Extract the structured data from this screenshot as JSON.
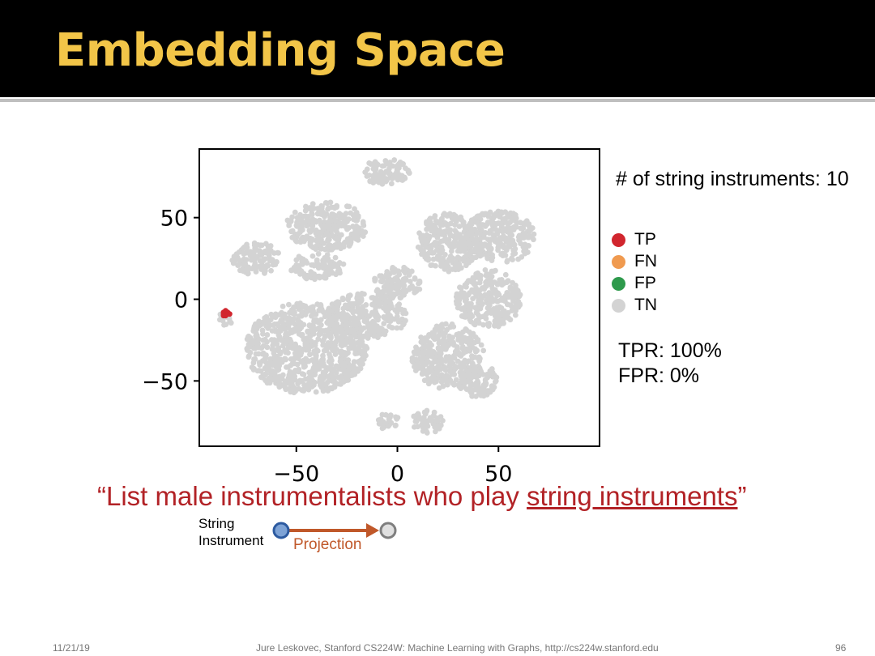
{
  "slide": {
    "title": "Embedding Space",
    "count_label": "# of string instruments: 10",
    "metrics": {
      "tpr": "TPR: 100%",
      "fpr": "FPR: 0%"
    },
    "query": {
      "open_quote": "“",
      "prefix": "List male instrumentalists who play ",
      "underlined": "string instruments",
      "close_quote": "”"
    },
    "projection_diagram": {
      "node_label_line1": "String",
      "node_label_line2": "Instrument",
      "edge_label": "Projection"
    },
    "footer": {
      "date": "11/21/19",
      "credit": "Jure Leskovec, Stanford CS224W: Machine Learning with Graphs, http://cs224w.stanford.edu",
      "page": "96"
    }
  },
  "colors": {
    "title": "#f2c548",
    "tp": "#d1262e",
    "fn": "#f09a4f",
    "fp": "#2e9a4c",
    "tn": "#d3d3d3",
    "query": "#b22226",
    "projection_arrow": "#c0582a"
  },
  "chart_data": {
    "type": "scatter",
    "xlim": [
      -98,
      100
    ],
    "ylim": [
      -90,
      92
    ],
    "xticks": [
      -50,
      0,
      50
    ],
    "yticks": [
      50,
      0,
      -50
    ],
    "tick_labels_x": [
      "−50",
      "0",
      "50"
    ],
    "tick_labels_y": [
      "50",
      "0",
      "−50"
    ],
    "legend": {
      "placement": "right",
      "entries": [
        {
          "label": "TP",
          "color": "#d1262e"
        },
        {
          "label": "FN",
          "color": "#f09a4f"
        },
        {
          "label": "FP",
          "color": "#2e9a4c"
        },
        {
          "label": "TN",
          "color": "#d3d3d3"
        }
      ]
    },
    "series": [
      {
        "name": "TN",
        "clusters": [
          {
            "cx": -6,
            "cy": 78,
            "rx": 12,
            "ry": 8
          },
          {
            "cx": -35,
            "cy": 45,
            "rx": 20,
            "ry": 15
          },
          {
            "cx": -40,
            "cy": 20,
            "rx": 14,
            "ry": 8
          },
          {
            "cx": -45,
            "cy": -30,
            "rx": 30,
            "ry": 28
          },
          {
            "cx": -15,
            "cy": -10,
            "rx": 20,
            "ry": 14
          },
          {
            "cx": 0,
            "cy": 10,
            "rx": 12,
            "ry": 10
          },
          {
            "cx": 25,
            "cy": 35,
            "rx": 15,
            "ry": 18
          },
          {
            "cx": 50,
            "cy": 38,
            "rx": 18,
            "ry": 16
          },
          {
            "cx": 45,
            "cy": 0,
            "rx": 16,
            "ry": 18
          },
          {
            "cx": 25,
            "cy": -35,
            "rx": 18,
            "ry": 20
          },
          {
            "cx": -70,
            "cy": 25,
            "rx": 12,
            "ry": 10
          },
          {
            "cx": 15,
            "cy": -75,
            "rx": 8,
            "ry": 7
          },
          {
            "cx": -5,
            "cy": -75,
            "rx": 6,
            "ry": 5
          },
          {
            "cx": 40,
            "cy": -50,
            "rx": 10,
            "ry": 10
          },
          {
            "cx": -85,
            "cy": -12,
            "rx": 4,
            "ry": 4
          }
        ]
      },
      {
        "name": "TP",
        "points": [
          [
            -85,
            -8
          ],
          [
            -84,
            -9
          ],
          [
            -86,
            -9
          ],
          [
            -85,
            -10
          ],
          [
            -84,
            -8
          ],
          [
            -86,
            -8
          ],
          [
            -85,
            -9
          ],
          [
            -83,
            -9
          ],
          [
            -85,
            -7
          ],
          [
            -86,
            -10
          ]
        ]
      }
    ]
  }
}
